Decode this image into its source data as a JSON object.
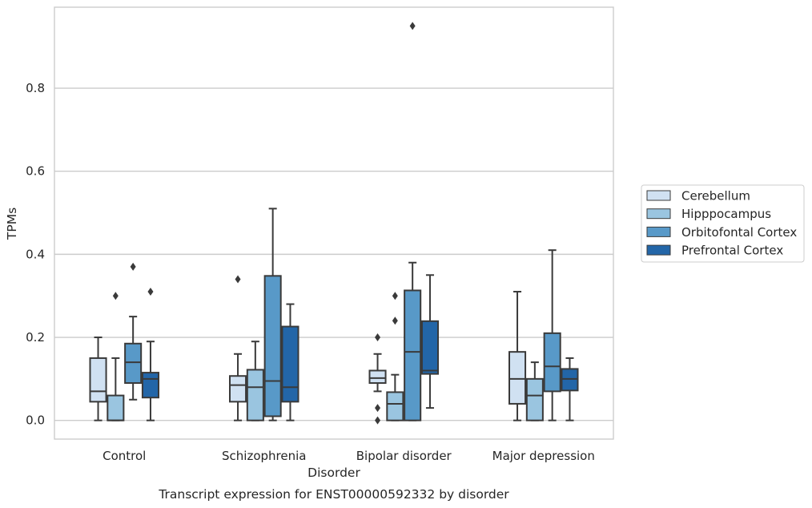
{
  "chart_data": {
    "type": "box",
    "title": "Transcript expression for ENST00000592332 by disorder",
    "xlabel": "Disorder",
    "ylabel": "TPMs",
    "ylim": [
      -0.045,
      0.995
    ],
    "yticks": [
      "0.0",
      "0.2",
      "0.4",
      "0.6",
      "0.8"
    ],
    "ytick_values": [
      0.0,
      0.2,
      0.4,
      0.6,
      0.8
    ],
    "grid": true,
    "legend_position": "right",
    "categories": [
      "Control",
      "Schizophrenia",
      "Bipolar disorder",
      "Major depression"
    ],
    "series": [
      {
        "name": "Cerebellum",
        "color": "#d0e1f2",
        "boxes": [
          {
            "whislo": 0.0,
            "q1": 0.045,
            "med": 0.07,
            "q3": 0.15,
            "whishi": 0.2,
            "fliers": []
          },
          {
            "whislo": 0.0,
            "q1": 0.045,
            "med": 0.085,
            "q3": 0.107,
            "whishi": 0.16,
            "fliers": [
              0.34
            ]
          },
          {
            "whislo": 0.07,
            "q1": 0.09,
            "med": 0.102,
            "q3": 0.12,
            "whishi": 0.16,
            "fliers": [
              0.2,
              0.03,
              0.0
            ]
          },
          {
            "whislo": 0.0,
            "q1": 0.04,
            "med": 0.1,
            "q3": 0.165,
            "whishi": 0.31,
            "fliers": []
          }
        ]
      },
      {
        "name": "Hipppocampus",
        "color": "#9ac5e0",
        "boxes": [
          {
            "whislo": 0.0,
            "q1": 0.0,
            "med": 0.0,
            "q3": 0.06,
            "whishi": 0.15,
            "fliers": [
              0.3
            ]
          },
          {
            "whislo": 0.0,
            "q1": 0.0,
            "med": 0.08,
            "q3": 0.122,
            "whishi": 0.19,
            "fliers": []
          },
          {
            "whislo": 0.0,
            "q1": 0.0,
            "med": 0.04,
            "q3": 0.068,
            "whishi": 0.11,
            "fliers": [
              0.3,
              0.24
            ]
          },
          {
            "whislo": 0.0,
            "q1": 0.0,
            "med": 0.06,
            "q3": 0.1,
            "whishi": 0.14,
            "fliers": []
          }
        ]
      },
      {
        "name": "Orbitofontal Cortex",
        "color": "#5899c8",
        "boxes": [
          {
            "whislo": 0.05,
            "q1": 0.09,
            "med": 0.14,
            "q3": 0.185,
            "whishi": 0.25,
            "fliers": [
              0.37
            ]
          },
          {
            "whislo": 0.0,
            "q1": 0.01,
            "med": 0.095,
            "q3": 0.348,
            "whishi": 0.51,
            "fliers": []
          },
          {
            "whislo": 0.0,
            "q1": 0.0,
            "med": 0.165,
            "q3": 0.313,
            "whishi": 0.38,
            "fliers": [
              0.95
            ]
          },
          {
            "whislo": 0.0,
            "q1": 0.07,
            "med": 0.13,
            "q3": 0.21,
            "whishi": 0.41,
            "fliers": []
          }
        ]
      },
      {
        "name": "Prefrontal Cortex",
        "color": "#2366a8",
        "boxes": [
          {
            "whislo": 0.0,
            "q1": 0.055,
            "med": 0.1,
            "q3": 0.115,
            "whishi": 0.19,
            "fliers": [
              0.31
            ]
          },
          {
            "whislo": 0.0,
            "q1": 0.045,
            "med": 0.08,
            "q3": 0.226,
            "whishi": 0.28,
            "fliers": []
          },
          {
            "whislo": 0.03,
            "q1": 0.112,
            "med": 0.12,
            "q3": 0.239,
            "whishi": 0.35,
            "fliers": []
          },
          {
            "whislo": 0.0,
            "q1": 0.072,
            "med": 0.1,
            "q3": 0.124,
            "whishi": 0.15,
            "fliers": []
          }
        ]
      }
    ]
  }
}
